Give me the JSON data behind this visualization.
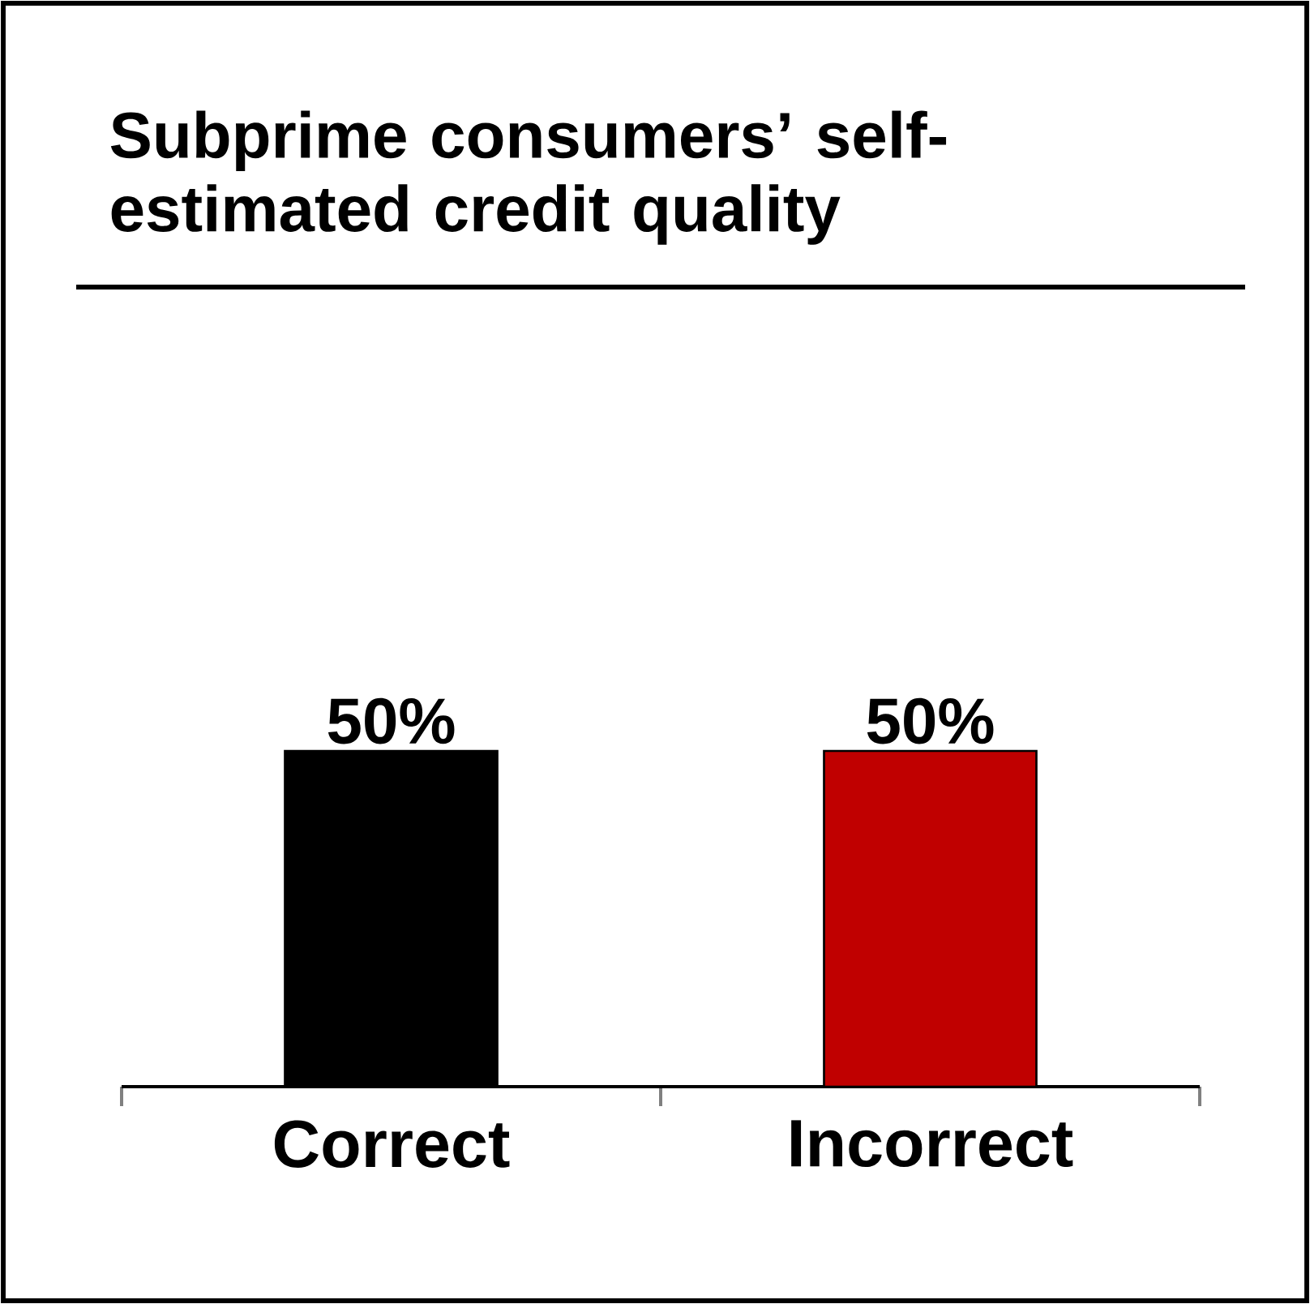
{
  "chart_data": {
    "type": "bar",
    "title": "Subprime consumers’ self-estimated credit quality",
    "categories": [
      "Correct",
      "Incorrect"
    ],
    "values": [
      50,
      50
    ],
    "colors": [
      "#000000",
      "#c00000"
    ],
    "value_labels": [
      "50%",
      "50%"
    ]
  }
}
